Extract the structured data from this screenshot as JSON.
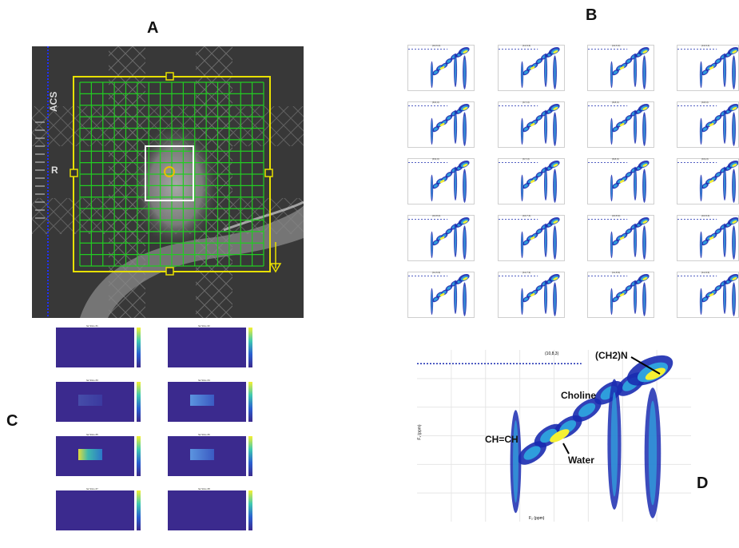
{
  "labels": {
    "a": "A",
    "b": "B",
    "c": "C",
    "d": "D"
  },
  "mri": {
    "acs": "ACS",
    "r": "R"
  },
  "grid_b": {
    "titles": [
      "(10,6,3)",
      "(11,6,3)",
      "(12,6,3)",
      "(13,6,3)",
      "(8,6,3)",
      "(9,7,3)",
      "(8,8,3)",
      "(9,8,3)",
      "(8,9,3)",
      "(9,7,3)",
      "(8,8,3)",
      "(9,9,3)",
      "(10,8,3)",
      "(10,7,3)",
      "(10,8,3)",
      "(10,9,3)",
      "(11,6,3)",
      "(11,7,3)",
      "(11,8,3)",
      "(11,9,3)"
    ]
  },
  "heatmaps_c": {
    "titles": [
      "fat Slice #1",
      "fat Slice #2",
      "fat Slice #3",
      "fat Slice #4",
      "fat Slice #5",
      "fat Slice #6",
      "fat Slice #7",
      "fat Slice #8"
    ]
  },
  "spectrum_d": {
    "title": "(10,8,3)",
    "xlabel": "F₂ (ppm)",
    "ylabel": "F₁ (ppm)",
    "annotations": {
      "ch2n": "(CH2)N",
      "choline": "Choline",
      "chch": "CH=CH",
      "water": "Water"
    }
  },
  "colors": {
    "grid_green": "#22cc22",
    "box_yellow": "#e8e000",
    "contour_dark": "#1a2bb0",
    "contour_mid": "#2fa8e0",
    "contour_hot": "#f5f032",
    "heat_bg": "#3b2a8e"
  }
}
